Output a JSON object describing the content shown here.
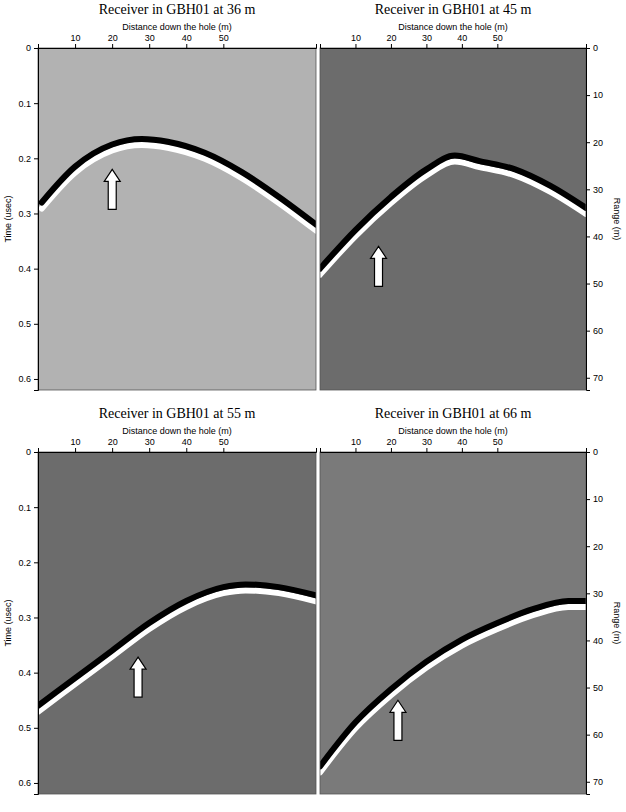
{
  "chart_data": [
    {
      "type": "line",
      "title": "Receiver in GBH01 at 36 m",
      "x_label": "Distance down the hole (m)",
      "y_label": "Time (usec)",
      "xlim": [
        0,
        75
      ],
      "xticks": [
        10,
        20,
        30,
        40,
        50
      ],
      "ylim": [
        0,
        0.62
      ],
      "yticks": [
        0,
        0.1,
        0.2,
        0.3,
        0.4,
        0.5,
        0.6
      ],
      "x": [
        1,
        10,
        20,
        28,
        35,
        45,
        55,
        65,
        75
      ],
      "series": [
        {
          "color": "#000000",
          "values": [
            0.28,
            0.215,
            0.175,
            0.165,
            0.17,
            0.19,
            0.225,
            0.27,
            0.32
          ]
        }
      ]
    },
    {
      "type": "line",
      "title": "Receiver in GBH01 at 45 m",
      "x_label": "Distance down the hole (m)",
      "y2_label": "Range (m)",
      "xlim": [
        0,
        75
      ],
      "xticks": [
        10,
        20,
        30,
        40,
        50
      ],
      "ylim": [
        0,
        0.62
      ],
      "y2lim": [
        0,
        72.6
      ],
      "y2ticks": [
        0,
        10,
        20,
        30,
        40,
        50,
        60,
        70
      ],
      "x": [
        0,
        10,
        20,
        30,
        38,
        45,
        55,
        65,
        75
      ],
      "series": [
        {
          "color": "#000000",
          "values": [
            0.4,
            0.33,
            0.27,
            0.22,
            0.195,
            0.205,
            0.22,
            0.25,
            0.29
          ]
        }
      ]
    },
    {
      "type": "line",
      "title": "Receiver in GBH01 at 55 m",
      "x_label": "Distance down the hole (m)",
      "y_label": "Time (usec)",
      "xlim": [
        0,
        75
      ],
      "xticks": [
        10,
        20,
        30,
        40,
        50
      ],
      "ylim": [
        0,
        0.62
      ],
      "yticks": [
        0,
        0.1,
        0.2,
        0.3,
        0.4,
        0.5,
        0.6
      ],
      "x": [
        0,
        10,
        20,
        30,
        40,
        50,
        56,
        65,
        75
      ],
      "series": [
        {
          "color": "#000000",
          "values": [
            0.46,
            0.41,
            0.36,
            0.31,
            0.27,
            0.245,
            0.24,
            0.245,
            0.26
          ]
        }
      ]
    },
    {
      "type": "line",
      "title": "Receiver in GBH01 at 66 m",
      "x_label": "Distance down the hole (m)",
      "y2_label": "Range (m)",
      "xlim": [
        0,
        75
      ],
      "xticks": [
        10,
        20,
        30,
        40,
        50
      ],
      "ylim": [
        0,
        0.62
      ],
      "y2lim": [
        0,
        72.6
      ],
      "y2ticks": [
        0,
        10,
        20,
        30,
        40,
        50,
        60,
        70
      ],
      "x": [
        0,
        10,
        20,
        30,
        40,
        50,
        60,
        70,
        75
      ],
      "series": [
        {
          "color": "#000000",
          "values": [
            0.57,
            0.49,
            0.43,
            0.38,
            0.34,
            0.31,
            0.285,
            0.27,
            0.27
          ]
        }
      ]
    }
  ]
}
